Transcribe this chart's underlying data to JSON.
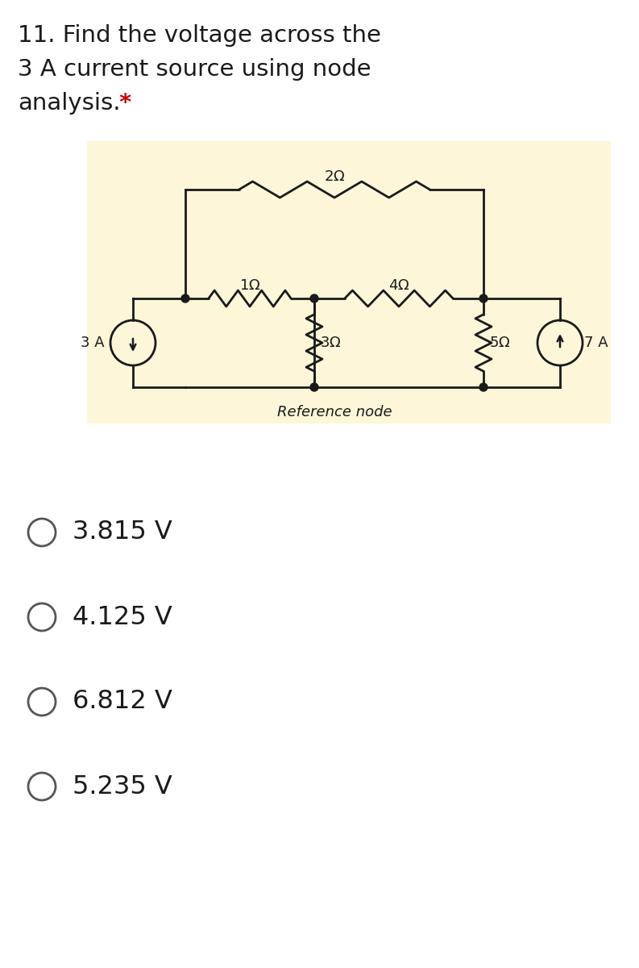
{
  "title_line1": "11. Find the voltage across the",
  "title_line2": "3 A current source using node",
  "title_line3": "analysis.",
  "title_star": " *",
  "circuit_bg_color": "#fdf6d8",
  "circuit_line_color": "#1a1a1a",
  "choices": [
    "3.815 V",
    "4.125 V",
    "6.812 V",
    "5.235 V"
  ],
  "ref_node_label": "Reference node",
  "fig_width": 7.93,
  "fig_height": 12.0
}
